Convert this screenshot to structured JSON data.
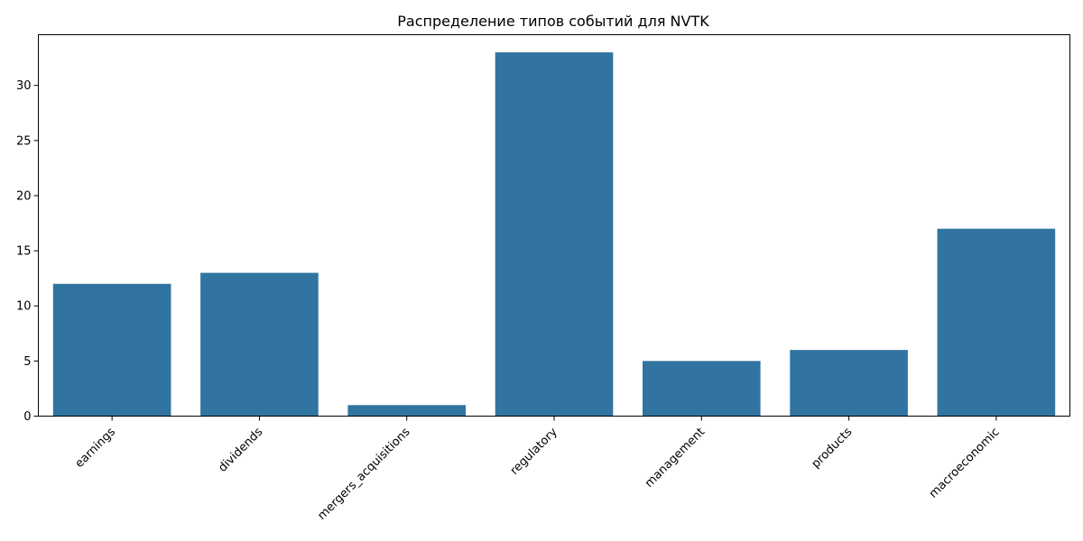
{
  "chart_data": {
    "type": "bar",
    "title": "Распределение типов событий для NVTK",
    "xlabel": "",
    "ylabel": "",
    "categories": [
      "earnings",
      "dividends",
      "mergers_acquisitions",
      "regulatory",
      "management",
      "products",
      "macroeconomic"
    ],
    "values": [
      12,
      13,
      1,
      33,
      5,
      6,
      17
    ],
    "ylim": [
      0,
      34.6
    ],
    "yticks": [
      0,
      5,
      10,
      15,
      20,
      25,
      30
    ],
    "bar_color": "#3274a1",
    "grid": false,
    "legend": "none"
  }
}
